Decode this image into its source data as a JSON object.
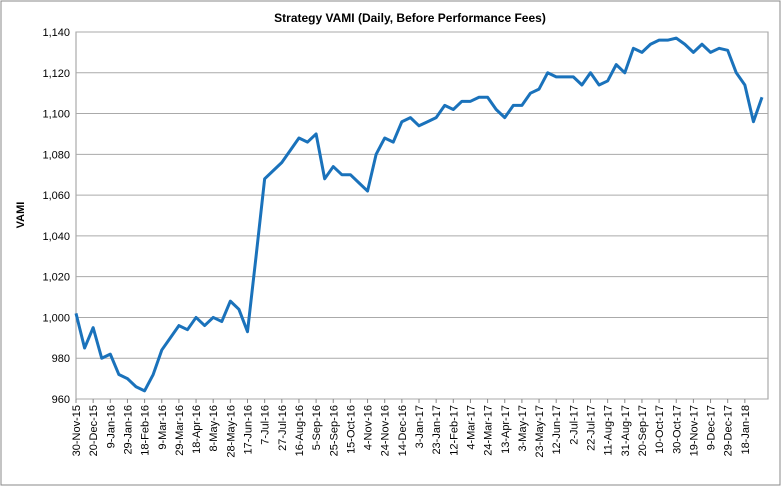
{
  "chart_data": {
    "type": "line",
    "title": "Strategy VAMI (Daily, Before Performance Fees)",
    "y_label": "VAMI",
    "categories": [
      "30-Nov-15",
      null,
      "20-Dec-15",
      null,
      "9-Jan-16",
      null,
      "29-Jan-16",
      null,
      "18-Feb-16",
      null,
      "9-Mar-16",
      null,
      "29-Mar-16",
      null,
      "18-Apr-16",
      null,
      "8-May-16",
      null,
      "28-May-16",
      null,
      "17-Jun-16",
      null,
      "7-Jul-16",
      null,
      "27-Jul-16",
      null,
      "16-Aug-16",
      null,
      "5-Sep-16",
      null,
      "25-Sep-16",
      null,
      "15-Oct-16",
      null,
      "4-Nov-16",
      null,
      "24-Nov-16",
      null,
      "14-Dec-16",
      null,
      "3-Jan-17",
      null,
      "23-Jan-17",
      null,
      "12-Feb-17",
      null,
      "4-Mar-17",
      null,
      "24-Mar-17",
      null,
      "13-Apr-17",
      null,
      "3-May-17",
      null,
      "23-May-17",
      null,
      "12-Jun-17",
      null,
      "2-Jul-17",
      null,
      "22-Jul-17",
      null,
      "11-Aug-17",
      null,
      "31-Aug-17",
      null,
      "20-Sep-17",
      null,
      "10-Oct-17",
      null,
      "30-Oct-17",
      null,
      "19-Nov-17",
      null,
      "9-Dec-17",
      null,
      "29-Dec-17",
      null,
      "18-Jan-18",
      null,
      null
    ],
    "series": [
      {
        "name": "VAMI",
        "color": "#1a72bb",
        "values": [
          1002,
          985,
          995,
          980,
          982,
          972,
          970,
          966,
          964,
          972,
          984,
          990,
          996,
          994,
          1000,
          996,
          1000,
          998,
          1008,
          1004,
          993,
          1030,
          1068,
          1072,
          1076,
          1082,
          1088,
          1086,
          1090,
          1068,
          1074,
          1070,
          1070,
          1066,
          1062,
          1080,
          1088,
          1086,
          1096,
          1098,
          1094,
          1096,
          1098,
          1104,
          1102,
          1106,
          1106,
          1108,
          1108,
          1102,
          1098,
          1104,
          1104,
          1110,
          1112,
          1120,
          1118,
          1118,
          1118,
          1114,
          1120,
          1114,
          1116,
          1124,
          1120,
          1132,
          1130,
          1134,
          1136,
          1136,
          1137,
          1134,
          1130,
          1134,
          1130,
          1132,
          1131,
          1120,
          1114,
          1096,
          1108
        ]
      }
    ],
    "ylim": [
      960,
      1140
    ],
    "yticks": [
      960,
      980,
      {
        "value": 1000,
        "label": "1,000"
      },
      {
        "value": 1020,
        "label": "1,020"
      },
      {
        "value": 1040,
        "label": "1,040"
      },
      {
        "value": 1060,
        "label": "1,060"
      },
      {
        "value": 1080,
        "label": "1,080"
      },
      {
        "value": 1100,
        "label": "1,100"
      },
      {
        "value": 1120,
        "label": "1,120"
      },
      {
        "value": 1140,
        "label": "1,140"
      }
    ],
    "grid": true
  }
}
